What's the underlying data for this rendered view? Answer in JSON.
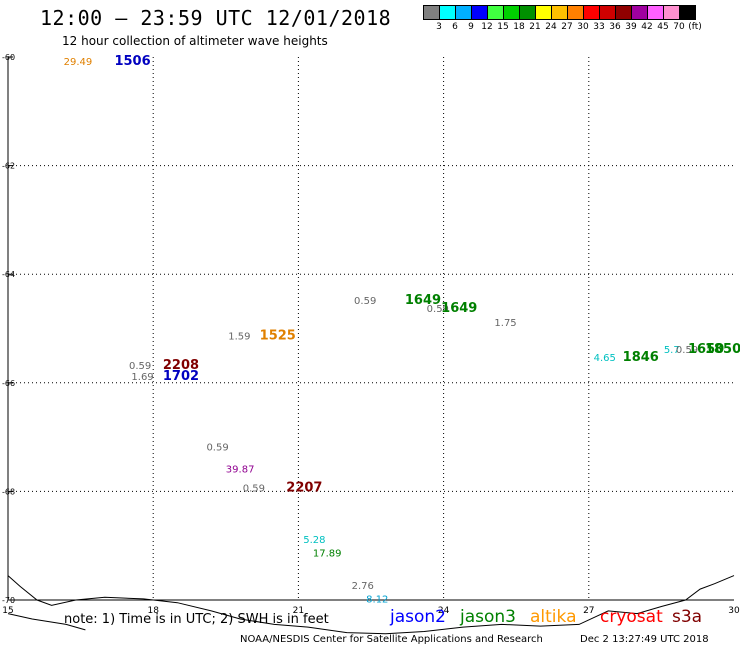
{
  "title": "12:00 — 23:59 UTC 12/01/2018",
  "subtitle": "12 hour collection of altimeter wave heights",
  "legend": {
    "colors": [
      "#808080",
      "#00ffff",
      "#00b0ff",
      "#0000ff",
      "#40ff40",
      "#00d000",
      "#009000",
      "#ffff00",
      "#ffc000",
      "#ff8000",
      "#ff0000",
      "#d00000",
      "#900000",
      "#a000a0",
      "#ff60ff",
      "#ff90d0",
      "#000000"
    ],
    "labels": [
      "3",
      "6",
      "9",
      "12",
      "15",
      "18",
      "21",
      "24",
      "27",
      "30",
      "33",
      "36",
      "39",
      "42",
      "45",
      "70",
      "(ft)"
    ]
  },
  "axes": {
    "x_ticks": [
      "15",
      "18",
      "21",
      "24",
      "27",
      "30"
    ],
    "y_ticks": [
      "-60",
      "-62",
      "-64",
      "-66",
      "-68",
      "-70"
    ],
    "lon_range": [
      15,
      30
    ],
    "lat_range": [
      -70,
      -60
    ]
  },
  "map_labels": [
    {
      "text": "29.49",
      "color": "#e08000",
      "size": 10,
      "lon": 16.15,
      "lat": -60.15
    },
    {
      "text": "1506",
      "color": "#0000c0",
      "size": 13,
      "bold": true,
      "lon": 17.2,
      "lat": -60.15
    },
    {
      "text": "0.59",
      "color": "#666666",
      "size": 10,
      "lon": 22.15,
      "lat": -64.55
    },
    {
      "text": "1649",
      "color": "#008000",
      "size": 13,
      "bold": true,
      "lon": 23.2,
      "lat": -64.55
    },
    {
      "text": "0.59",
      "color": "#666666",
      "size": 10,
      "lon": 23.65,
      "lat": -64.7
    },
    {
      "text": "1649",
      "color": "#008000",
      "size": 13,
      "bold": true,
      "lon": 23.95,
      "lat": -64.7
    },
    {
      "text": "1.75",
      "color": "#666666",
      "size": 10,
      "lon": 25.05,
      "lat": -64.95
    },
    {
      "text": "1.59",
      "color": "#666666",
      "size": 10,
      "lon": 19.55,
      "lat": -65.2
    },
    {
      "text": "1525",
      "color": "#e08000",
      "size": 13,
      "bold": true,
      "lon": 20.2,
      "lat": -65.2
    },
    {
      "text": "4.65",
      "color": "#00c0c0",
      "size": 10,
      "lon": 27.1,
      "lat": -65.6
    },
    {
      "text": "1846",
      "color": "#008000",
      "size": 13,
      "bold": true,
      "lon": 27.7,
      "lat": -65.6
    },
    {
      "text": "5.7",
      "color": "#00c0c0",
      "size": 10,
      "lon": 28.55,
      "lat": -65.45
    },
    {
      "text": "0.59",
      "color": "#666666",
      "size": 10,
      "lon": 28.8,
      "lat": -65.45
    },
    {
      "text": "1650",
      "color": "#008000",
      "size": 13,
      "bold": true,
      "lon": 29.05,
      "lat": -65.45
    },
    {
      "text": "1850",
      "color": "#008000",
      "size": 13,
      "bold": true,
      "lon": 29.4,
      "lat": -65.45
    },
    {
      "text": "0.59",
      "color": "#666666",
      "size": 10,
      "lon": 17.5,
      "lat": -65.75
    },
    {
      "text": "2208",
      "color": "#800000",
      "size": 13,
      "bold": true,
      "lon": 18.2,
      "lat": -65.75
    },
    {
      "text": "1.69",
      "color": "#666666",
      "size": 10,
      "lon": 17.55,
      "lat": -65.95
    },
    {
      "text": "1702",
      "color": "#0000c0",
      "size": 13,
      "bold": true,
      "lon": 18.2,
      "lat": -65.95
    },
    {
      "text": "0.59",
      "color": "#666666",
      "size": 10,
      "lon": 19.1,
      "lat": -67.25
    },
    {
      "text": "39.87",
      "color": "#900090",
      "size": 10,
      "lon": 19.5,
      "lat": -67.65
    },
    {
      "text": "0.59",
      "color": "#666666",
      "size": 10,
      "lon": 19.85,
      "lat": -68.0
    },
    {
      "text": "2207",
      "color": "#800000",
      "size": 13,
      "bold": true,
      "lon": 20.75,
      "lat": -68.0
    },
    {
      "text": "5.28",
      "color": "#00c0c0",
      "size": 10,
      "lon": 21.1,
      "lat": -68.95
    },
    {
      "text": "17.89",
      "color": "#008000",
      "size": 10,
      "lon": 21.3,
      "lat": -69.2
    },
    {
      "text": "2.76",
      "color": "#666666",
      "size": 10,
      "lon": 22.1,
      "lat": -69.8
    },
    {
      "text": "8.12",
      "color": "#00a0d0",
      "size": 10,
      "lon": 22.4,
      "lat": -70.05
    }
  ],
  "coastline": [
    [
      15.0,
      -69.55
    ],
    [
      15.25,
      -69.75
    ],
    [
      15.6,
      -70.0
    ],
    [
      15.9,
      -70.1
    ],
    [
      16.4,
      -70.0
    ],
    [
      17.0,
      -69.95
    ],
    [
      17.8,
      -69.98
    ],
    [
      18.5,
      -70.05
    ],
    [
      19.2,
      -70.2
    ],
    [
      19.8,
      -70.35
    ],
    [
      20.5,
      -70.45
    ],
    [
      21.2,
      -70.5
    ],
    [
      22.0,
      -70.6
    ],
    [
      22.8,
      -70.62
    ],
    [
      23.6,
      -70.58
    ],
    [
      24.4,
      -70.5
    ],
    [
      25.2,
      -70.45
    ],
    [
      26.0,
      -70.48
    ],
    [
      26.8,
      -70.45
    ],
    [
      27.4,
      -70.2
    ],
    [
      28.0,
      -70.25
    ],
    [
      28.5,
      -70.12
    ],
    [
      29.0,
      -70.0
    ],
    [
      29.3,
      -69.8
    ],
    [
      29.6,
      -69.7
    ],
    [
      30.0,
      -69.55
    ]
  ],
  "coastline2": [
    [
      15.0,
      -70.25
    ],
    [
      15.5,
      -70.35
    ],
    [
      16.2,
      -70.45
    ],
    [
      16.6,
      -70.55
    ]
  ],
  "note": "note: 1) Time is in UTC; 2) SWH is in feet",
  "satellites": [
    {
      "name": "jason2",
      "color": "#0000ff"
    },
    {
      "name": "jason3",
      "color": "#008000"
    },
    {
      "name": "altika",
      "color": "#ff9900"
    },
    {
      "name": "cryosat",
      "color": "#ff0000"
    },
    {
      "name": "s3a",
      "color": "#800000"
    }
  ],
  "footer": "NOAA/NESDIS Center for Satellite Applications and Research",
  "footer_time": "Dec  2 13:27:49 UTC 2018"
}
